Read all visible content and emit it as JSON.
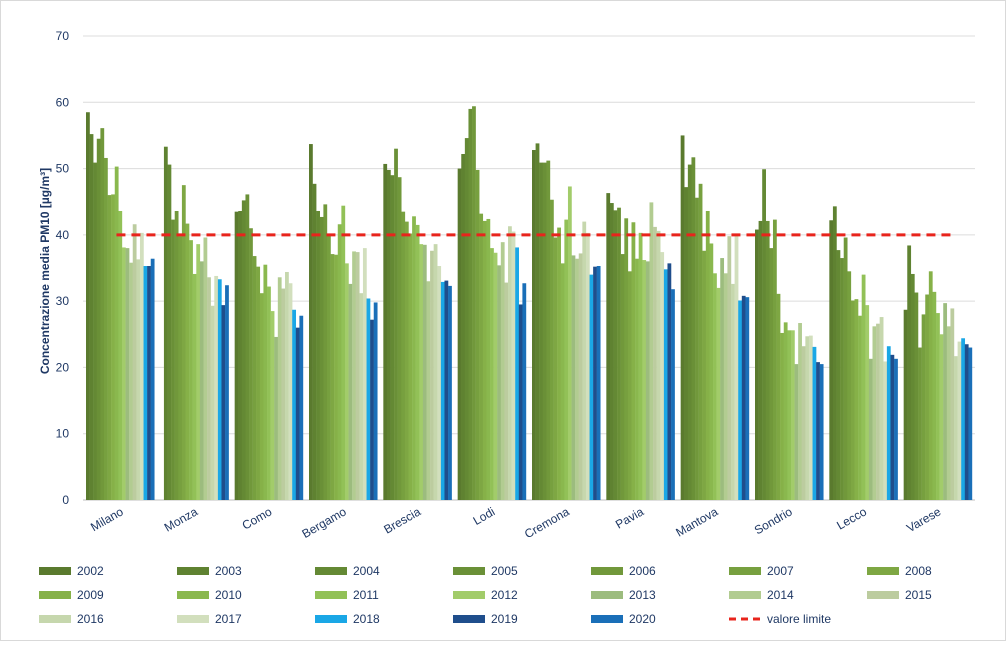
{
  "chart_data": {
    "type": "bar",
    "title": "",
    "xlabel": "",
    "ylabel": "Concentrazione media PM10 [µg/m³]",
    "ylim": [
      0,
      70
    ],
    "yticks": [
      "0",
      "10",
      "20",
      "30",
      "40",
      "50",
      "60",
      "70"
    ],
    "grid": "horizontal",
    "legend_position": "bottom",
    "categories": [
      "Milano",
      "Monza",
      "Como",
      "Bergamo",
      "Brescia",
      "Lodi",
      "Cremona",
      "Pavia",
      "Mantova",
      "Sondrio",
      "Lecco",
      "Varese"
    ],
    "series": [
      {
        "name": "2002",
        "color": "#5a7a2e",
        "values": [
          58.5,
          0,
          43.5,
          53.7,
          50.7,
          50.0,
          52.8,
          46.3,
          55.0,
          40.8,
          42.2,
          28.7
        ]
      },
      {
        "name": "2003",
        "color": "#5f8231",
        "values": [
          55.2,
          53.3,
          43.6,
          47.7,
          49.8,
          52.2,
          53.8,
          44.8,
          47.2,
          42.1,
          44.3,
          38.4
        ]
      },
      {
        "name": "2004",
        "color": "#648934",
        "values": [
          50.9,
          50.6,
          45.2,
          43.6,
          49.0,
          54.6,
          50.9,
          43.7,
          50.6,
          49.9,
          37.7,
          34.1
        ]
      },
      {
        "name": "2005",
        "color": "#6a9037",
        "values": [
          54.5,
          42.3,
          46.1,
          42.7,
          53.0,
          59.0,
          50.9,
          44.1,
          51.7,
          42.1,
          36.5,
          31.3
        ]
      },
      {
        "name": "2006",
        "color": "#71983b",
        "values": [
          56.1,
          43.6,
          41.0,
          44.6,
          48.7,
          59.4,
          51.2,
          37.1,
          45.6,
          38.0,
          39.6,
          23.0
        ]
      },
      {
        "name": "2007",
        "color": "#77a03f",
        "values": [
          51.6,
          39.8,
          36.8,
          40.2,
          43.5,
          49.8,
          45.3,
          42.5,
          47.7,
          42.3,
          34.5,
          28.0
        ]
      },
      {
        "name": "2008",
        "color": "#7ea743",
        "values": [
          46.0,
          47.5,
          35.2,
          37.1,
          42.0,
          43.2,
          39.6,
          34.5,
          37.6,
          31.1,
          30.1,
          31.0
        ]
      },
      {
        "name": "2009",
        "color": "#86b148",
        "values": [
          46.1,
          41.7,
          31.2,
          37.0,
          40.2,
          42.1,
          41.1,
          41.9,
          43.6,
          25.2,
          30.3,
          34.5
        ]
      },
      {
        "name": "2010",
        "color": "#8ab84e",
        "values": [
          50.3,
          39.2,
          35.5,
          41.6,
          42.8,
          42.4,
          35.7,
          36.4,
          38.7,
          26.8,
          27.8,
          31.4
        ]
      },
      {
        "name": "2011",
        "color": "#92c157",
        "values": [
          43.6,
          34.1,
          32.2,
          44.4,
          41.5,
          38.0,
          42.3,
          40.3,
          34.2,
          25.6,
          34.0,
          28.2
        ]
      },
      {
        "name": "2012",
        "color": "#a2cc6a",
        "values": [
          38.1,
          38.6,
          28.5,
          35.7,
          38.6,
          37.3,
          47.3,
          36.2,
          32.0,
          25.6,
          29.4,
          25.0
        ]
      },
      {
        "name": "2013",
        "color": "#9cbc7e",
        "values": [
          38.0,
          36.0,
          24.6,
          32.6,
          38.5,
          35.4,
          36.9,
          36.0,
          36.5,
          20.5,
          21.3,
          29.7
        ]
      },
      {
        "name": "2014",
        "color": "#b2cc91",
        "values": [
          35.8,
          39.6,
          33.6,
          37.5,
          33.0,
          38.9,
          36.4,
          44.9,
          34.2,
          26.7,
          26.2,
          26.2
        ]
      },
      {
        "name": "2015",
        "color": "#bccc9f",
        "values": [
          41.6,
          33.6,
          31.9,
          37.4,
          37.6,
          32.8,
          37.2,
          41.2,
          39.8,
          23.2,
          26.6,
          28.9
        ]
      },
      {
        "name": "2016",
        "color": "#c6d7ad",
        "values": [
          36.3,
          29.3,
          34.4,
          31.2,
          38.6,
          41.3,
          42.0,
          40.6,
          32.6,
          24.7,
          27.6,
          21.7
        ]
      },
      {
        "name": "2017",
        "color": "#d2dfbd",
        "values": [
          40.3,
          33.8,
          32.7,
          38.0,
          35.3,
          40.5,
          40.3,
          37.4,
          39.9,
          24.8,
          20.9,
          23.9
        ]
      },
      {
        "name": "2018",
        "color": "#1aa7e6",
        "values": [
          35.3,
          33.3,
          28.7,
          30.4,
          32.9,
          38.1,
          34.0,
          34.8,
          30.1,
          23.1,
          23.2,
          24.4
        ]
      },
      {
        "name": "2019",
        "color": "#1f4e8c",
        "values": [
          35.3,
          29.4,
          26.0,
          27.2,
          33.1,
          29.5,
          35.2,
          35.7,
          30.8,
          20.8,
          21.9,
          23.5
        ]
      },
      {
        "name": "2020",
        "color": "#1a6fb8",
        "values": [
          36.4,
          32.4,
          27.8,
          29.8,
          32.3,
          32.7,
          35.3,
          31.8,
          30.6,
          20.5,
          21.3,
          23.0
        ]
      }
    ],
    "limit_line": {
      "name": "valore limite",
      "value": 40,
      "color": "#e8241c",
      "style": "dashed"
    }
  }
}
